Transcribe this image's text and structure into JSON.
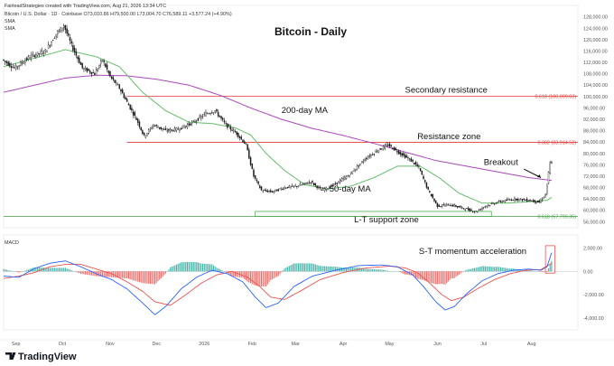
{
  "header": {
    "creator_line": "FairleadStrategies created with TradingView.com, Aug 21, 2026 13:34 UTC",
    "ohlc_line": "Bitcoin / U.S. Dollar · 1D · Coinbase  O73,010.86  H79,500.00  L73,004.70  C76,589.11  +3,577.24 (+4.90%)",
    "indicator_1": "SMA",
    "indicator_2": "SMA",
    "macd_label": "MACD"
  },
  "brand": "TradingView",
  "colors": {
    "candle": "#1a1a1a",
    "sma50": "#66bb6a",
    "sma200": "#ab47bc",
    "resistance": "#e53935",
    "support": "#43a047",
    "macd": "#2962ff",
    "signal": "#ef5350",
    "hist_up": "#26a69a",
    "hist_down": "#ef5350"
  },
  "chart_data": {
    "type": "candlestick",
    "title": "Bitcoin - Daily",
    "y_axis": {
      "ticks": [
        128000,
        124000,
        120000,
        116000,
        112000,
        108000,
        104000,
        100000,
        96000,
        92000,
        88000,
        84000,
        80000,
        76000,
        72000,
        68000,
        64000,
        60000,
        56000
      ],
      "tick_labels": [
        "128,000.00",
        "124,000.00",
        "120,000.00",
        "116,000.00",
        "112,000.00",
        "108,000.00",
        "104,000.00",
        "100,000.00",
        "96,000.00",
        "92,000.00",
        "88,000.00",
        "84,000.00",
        "80,000.00",
        "76,000.00",
        "72,000.00",
        "68,000.00",
        "64,000.00",
        "60,000.00",
        "56,000.00"
      ],
      "ylim": [
        54500,
        129500
      ]
    },
    "macd_axis": {
      "ticks": [
        2000,
        0,
        -2000,
        -4000
      ],
      "tick_labels": [
        "2,000.00",
        "0.00",
        "-2,000.00",
        "-4,000.00"
      ],
      "ylim": [
        -5000,
        2500
      ]
    },
    "x_axis": {
      "labels": [
        "Sep",
        "Oct",
        "Nov",
        "Dec",
        "2026",
        "Feb",
        "Mar",
        "Apr",
        "May",
        "Jun",
        "Jul",
        "Aug"
      ],
      "label_days": [
        8,
        38,
        69,
        99,
        130,
        161,
        189,
        220,
        250,
        281,
        311,
        342
      ],
      "xlim": [
        0,
        372
      ]
    },
    "price_path": [
      [
        0,
        113000
      ],
      [
        8,
        110000
      ],
      [
        18,
        114000
      ],
      [
        28,
        116000
      ],
      [
        35,
        122000
      ],
      [
        40,
        125000
      ],
      [
        45,
        118000
      ],
      [
        52,
        110000
      ],
      [
        60,
        108000
      ],
      [
        65,
        113000
      ],
      [
        70,
        107000
      ],
      [
        76,
        103000
      ],
      [
        82,
        97000
      ],
      [
        88,
        91000
      ],
      [
        92,
        86000
      ],
      [
        98,
        90000
      ],
      [
        106,
        88000
      ],
      [
        114,
        88500
      ],
      [
        124,
        91000
      ],
      [
        132,
        94000
      ],
      [
        138,
        95000
      ],
      [
        145,
        90000
      ],
      [
        152,
        87000
      ],
      [
        158,
        83000
      ],
      [
        163,
        72000
      ],
      [
        168,
        67000
      ],
      [
        175,
        66500
      ],
      [
        183,
        68000
      ],
      [
        191,
        68500
      ],
      [
        200,
        70000
      ],
      [
        207,
        67000
      ],
      [
        215,
        69000
      ],
      [
        225,
        72500
      ],
      [
        235,
        78000
      ],
      [
        243,
        81000
      ],
      [
        250,
        83000
      ],
      [
        258,
        80000
      ],
      [
        265,
        77500
      ],
      [
        270,
        75000
      ],
      [
        276,
        67000
      ],
      [
        282,
        61500
      ],
      [
        290,
        62000
      ],
      [
        300,
        60500
      ],
      [
        307,
        59500
      ],
      [
        313,
        61500
      ],
      [
        322,
        63000
      ],
      [
        332,
        64000
      ],
      [
        342,
        63500
      ],
      [
        348,
        62800
      ],
      [
        352,
        65500
      ],
      [
        354,
        73000
      ],
      [
        355,
        76600
      ]
    ],
    "sma_50_day": [
      [
        0,
        110500
      ],
      [
        20,
        113500
      ],
      [
        40,
        116500
      ],
      [
        60,
        114000
      ],
      [
        75,
        110500
      ],
      [
        90,
        101500
      ],
      [
        105,
        95000
      ],
      [
        120,
        91000
      ],
      [
        135,
        90500
      ],
      [
        150,
        89000
      ],
      [
        160,
        86500
      ],
      [
        170,
        80000
      ],
      [
        182,
        74000
      ],
      [
        195,
        69000
      ],
      [
        210,
        67500
      ],
      [
        225,
        68500
      ],
      [
        240,
        71500
      ],
      [
        255,
        75500
      ],
      [
        270,
        75500
      ],
      [
        282,
        71500
      ],
      [
        295,
        66000
      ],
      [
        310,
        62500
      ],
      [
        325,
        62500
      ],
      [
        340,
        63000
      ],
      [
        352,
        63500
      ],
      [
        355,
        64500
      ]
    ],
    "sma_200_day": [
      [
        0,
        101500
      ],
      [
        20,
        104000
      ],
      [
        40,
        106500
      ],
      [
        60,
        107500
      ],
      [
        80,
        107300
      ],
      [
        100,
        106000
      ],
      [
        120,
        104000
      ],
      [
        140,
        100500
      ],
      [
        160,
        96000
      ],
      [
        180,
        92000
      ],
      [
        200,
        88800
      ],
      [
        220,
        86300
      ],
      [
        240,
        83500
      ],
      [
        260,
        80500
      ],
      [
        280,
        77500
      ],
      [
        300,
        75500
      ],
      [
        320,
        73500
      ],
      [
        340,
        71500
      ],
      [
        355,
        70500
      ]
    ],
    "levels": [
      {
        "label": "0.618 (100,099.03)",
        "value": 100099.03,
        "color": "#e53935"
      },
      {
        "label": "0.382 (83,914.52)",
        "value": 83914.52,
        "color": "#e53935"
      },
      {
        "label": "0.618 (57,799.35)",
        "value": 57799.35,
        "color": "#43a047"
      }
    ],
    "support_box_top": 59600,
    "macd_path": [
      [
        0,
        -400
      ],
      [
        10,
        -500
      ],
      [
        20,
        250
      ],
      [
        30,
        700
      ],
      [
        40,
        900
      ],
      [
        50,
        400
      ],
      [
        60,
        -200
      ],
      [
        70,
        -700
      ],
      [
        80,
        -1500
      ],
      [
        90,
        -2700
      ],
      [
        98,
        -3700
      ],
      [
        105,
        -3000
      ],
      [
        115,
        -1500
      ],
      [
        125,
        -500
      ],
      [
        135,
        100
      ],
      [
        145,
        -200
      ],
      [
        155,
        -900
      ],
      [
        163,
        -2200
      ],
      [
        170,
        -3100
      ],
      [
        178,
        -2700
      ],
      [
        188,
        -1300
      ],
      [
        200,
        -400
      ],
      [
        215,
        100
      ],
      [
        230,
        500
      ],
      [
        245,
        550
      ],
      [
        255,
        400
      ],
      [
        265,
        -300
      ],
      [
        272,
        -1300
      ],
      [
        280,
        -2600
      ],
      [
        286,
        -3300
      ],
      [
        292,
        -3000
      ],
      [
        300,
        -1900
      ],
      [
        310,
        -800
      ],
      [
        320,
        -200
      ],
      [
        330,
        100
      ],
      [
        340,
        200
      ],
      [
        348,
        100
      ],
      [
        352,
        400
      ],
      [
        355,
        1600
      ]
    ],
    "signal_path": [
      [
        0,
        -600
      ],
      [
        10,
        -400
      ],
      [
        20,
        -100
      ],
      [
        30,
        400
      ],
      [
        40,
        600
      ],
      [
        50,
        600
      ],
      [
        60,
        200
      ],
      [
        70,
        -200
      ],
      [
        80,
        -900
      ],
      [
        90,
        -1700
      ],
      [
        98,
        -2600
      ],
      [
        108,
        -2900
      ],
      [
        118,
        -2000
      ],
      [
        128,
        -1000
      ],
      [
        138,
        -300
      ],
      [
        148,
        0
      ],
      [
        158,
        -500
      ],
      [
        166,
        -1300
      ],
      [
        173,
        -2200
      ],
      [
        182,
        -2400
      ],
      [
        192,
        -1700
      ],
      [
        205,
        -700
      ],
      [
        220,
        -100
      ],
      [
        235,
        300
      ],
      [
        250,
        450
      ],
      [
        260,
        300
      ],
      [
        268,
        -100
      ],
      [
        276,
        -1000
      ],
      [
        284,
        -2000
      ],
      [
        290,
        -2500
      ],
      [
        298,
        -2200
      ],
      [
        308,
        -1400
      ],
      [
        318,
        -700
      ],
      [
        328,
        -200
      ],
      [
        338,
        100
      ],
      [
        348,
        150
      ],
      [
        355,
        700
      ]
    ],
    "annotations": [
      {
        "text": "Secondary resistance",
        "x": 260,
        "y": 101300
      },
      {
        "text": "200-day MA",
        "x": 180,
        "y": 94200
      },
      {
        "text": "Resistance zone",
        "x": 268,
        "y": 85000
      },
      {
        "text": "Breakout",
        "x": 311,
        "y": 76000
      },
      {
        "text": "50-day MA",
        "x": 211,
        "y": 66500
      },
      {
        "text": "L-T support zone",
        "x": 227,
        "y": 55800
      },
      {
        "text": "S-T momentum acceleration",
        "x": 269,
        "y": 1500
      }
    ]
  }
}
